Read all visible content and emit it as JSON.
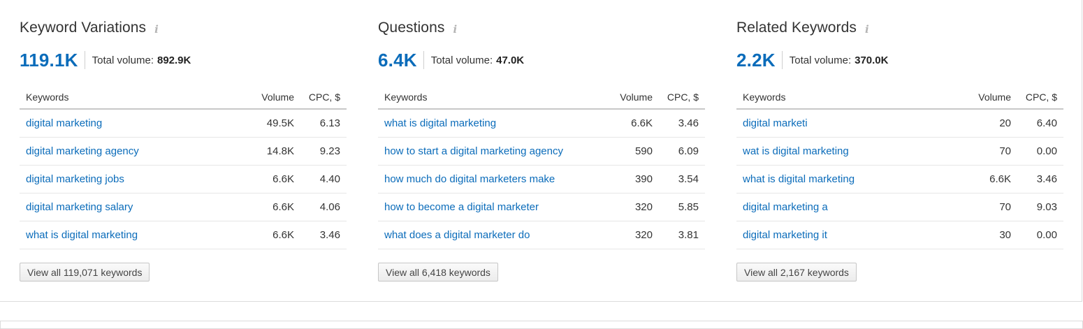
{
  "widgets": [
    {
      "title": "Keyword Variations",
      "count": "119.1K",
      "total_label": "Total volume:",
      "total_value": "892.9K",
      "columns": {
        "keywords": "Keywords",
        "volume": "Volume",
        "cpc": "CPC, $"
      },
      "rows": [
        {
          "keyword": "digital marketing",
          "volume": "49.5K",
          "cpc": "6.13"
        },
        {
          "keyword": "digital marketing agency",
          "volume": "14.8K",
          "cpc": "9.23"
        },
        {
          "keyword": "digital marketing jobs",
          "volume": "6.6K",
          "cpc": "4.40"
        },
        {
          "keyword": "digital marketing salary",
          "volume": "6.6K",
          "cpc": "4.06"
        },
        {
          "keyword": "what is digital marketing",
          "volume": "6.6K",
          "cpc": "3.46"
        }
      ],
      "view_all": "View all 119,071 keywords"
    },
    {
      "title": "Questions",
      "count": "6.4K",
      "total_label": "Total volume:",
      "total_value": "47.0K",
      "columns": {
        "keywords": "Keywords",
        "volume": "Volume",
        "cpc": "CPC, $"
      },
      "rows": [
        {
          "keyword": "what is digital marketing",
          "volume": "6.6K",
          "cpc": "3.46"
        },
        {
          "keyword": "how to start a digital marketing agency",
          "volume": "590",
          "cpc": "6.09"
        },
        {
          "keyword": "how much do digital marketers make",
          "volume": "390",
          "cpc": "3.54"
        },
        {
          "keyword": "how to become a digital marketer",
          "volume": "320",
          "cpc": "5.85"
        },
        {
          "keyword": "what does a digital marketer do",
          "volume": "320",
          "cpc": "3.81"
        }
      ],
      "view_all": "View all 6,418 keywords"
    },
    {
      "title": "Related Keywords",
      "count": "2.2K",
      "total_label": "Total volume:",
      "total_value": "370.0K",
      "columns": {
        "keywords": "Keywords",
        "volume": "Volume",
        "cpc": "CPC, $"
      },
      "rows": [
        {
          "keyword": "digital marketi",
          "volume": "20",
          "cpc": "6.40"
        },
        {
          "keyword": "wat is digital marketing",
          "volume": "70",
          "cpc": "0.00"
        },
        {
          "keyword": "what is digital marketing",
          "volume": "6.6K",
          "cpc": "3.46"
        },
        {
          "keyword": "digital marketing a",
          "volume": "70",
          "cpc": "9.03"
        },
        {
          "keyword": "digital marketing it",
          "volume": "30",
          "cpc": "0.00"
        }
      ],
      "view_all": "View all 2,167 keywords"
    }
  ],
  "info_icon": "info-icon",
  "colors": {
    "link": "#0b6cba",
    "big_number": "#0b6cba",
    "text": "#333333"
  }
}
